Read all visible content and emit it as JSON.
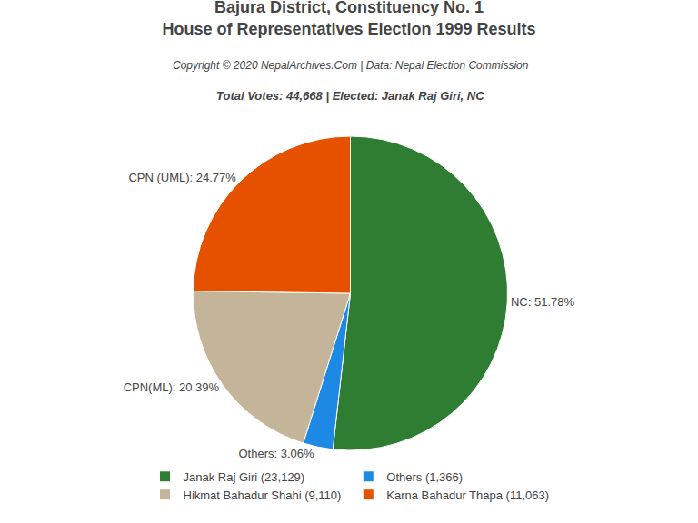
{
  "chart_data": {
    "type": "pie",
    "title": "Bajura District, Constituency No. 1",
    "subtitle": "House of Representatives Election 1999 Results",
    "annotations": [
      "Copyright © 2020 NepalArchives.Com | Data: Nepal Election Commission",
      "Total Votes: 44,668 | Elected: Janak Raj Giri, NC"
    ],
    "categories": [
      "Janak Raj Giri (23,129)",
      "Others (1,366)",
      "Hikmat Bahadur Shahi (9,110)",
      "Karna Bahadur Thapa (11,063)"
    ],
    "values": [
      51.78,
      3.06,
      20.39,
      24.77
    ],
    "value_labels": [
      "NC: 51.78%",
      "Others: 3.06%",
      "CPN(ML): 20.39%",
      "CPN (UML): 24.77%"
    ],
    "colors": [
      "#2e7d32",
      "#1e88e5",
      "#c4b49a",
      "#e65100"
    ],
    "data_labels": true,
    "legend": "bottom"
  }
}
